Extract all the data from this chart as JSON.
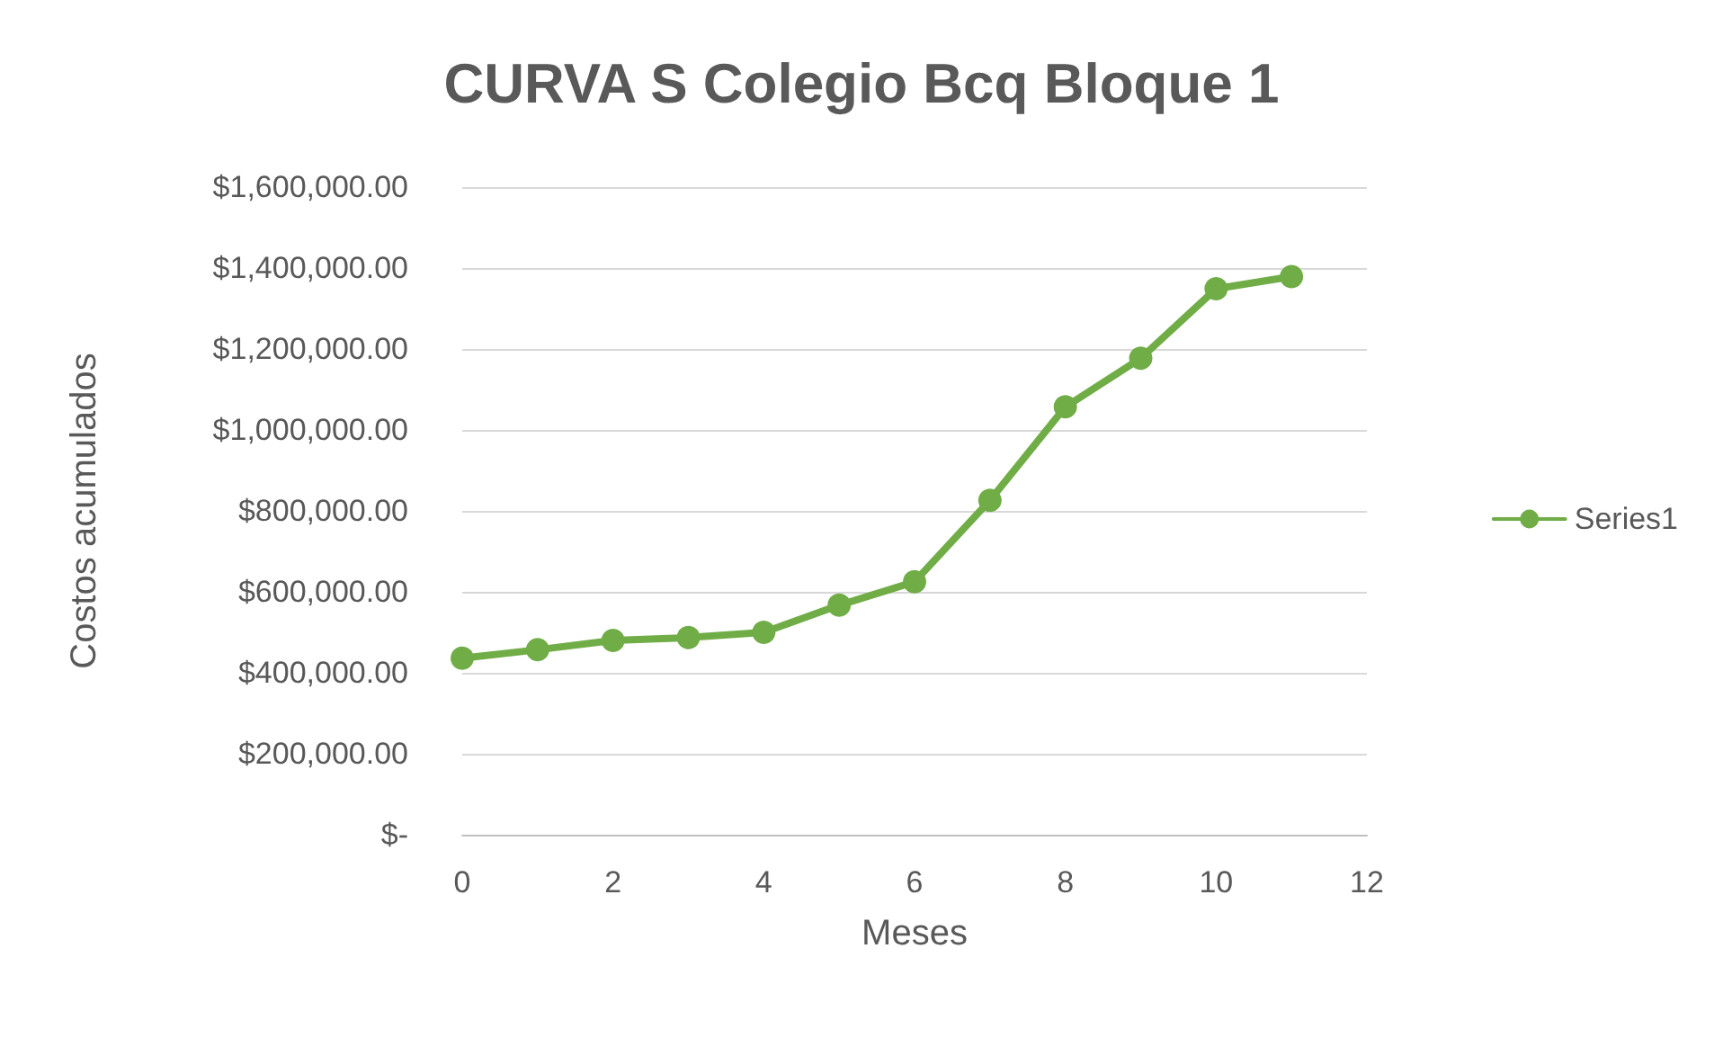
{
  "chart_data": {
    "type": "line",
    "title": "CURVA S Colegio Bcq Bloque 1",
    "xlabel": "Meses",
    "ylabel": "Costos acumulados",
    "x": [
      0,
      1,
      2,
      3,
      4,
      5,
      6,
      7,
      8,
      9,
      10,
      11
    ],
    "series": [
      {
        "name": "Series1",
        "color": "#70ad47",
        "values": [
          436000,
          457000,
          480000,
          487000,
          500000,
          567000,
          625000,
          826000,
          1057000,
          1177000,
          1349000,
          1379000
        ]
      }
    ],
    "xlim": [
      0,
      12
    ],
    "xticks": [
      0,
      2,
      4,
      6,
      8,
      10,
      12
    ],
    "ylim": [
      0,
      1600000
    ],
    "yticks": [
      {
        "value": 0,
        "label": "$-"
      },
      {
        "value": 200000,
        "label": "$200,000.00"
      },
      {
        "value": 400000,
        "label": "$400,000.00"
      },
      {
        "value": 600000,
        "label": "$600,000.00"
      },
      {
        "value": 800000,
        "label": "$800,000.00"
      },
      {
        "value": 1000000,
        "label": "$1,000,000.00"
      },
      {
        "value": 1200000,
        "label": "$1,200,000.00"
      },
      {
        "value": 1400000,
        "label": "$1,400,000.00"
      },
      {
        "value": 1600000,
        "label": "$1,600,000.00"
      }
    ],
    "grid": "y",
    "legend": "right",
    "marker": "circle",
    "line_style": "solid"
  }
}
